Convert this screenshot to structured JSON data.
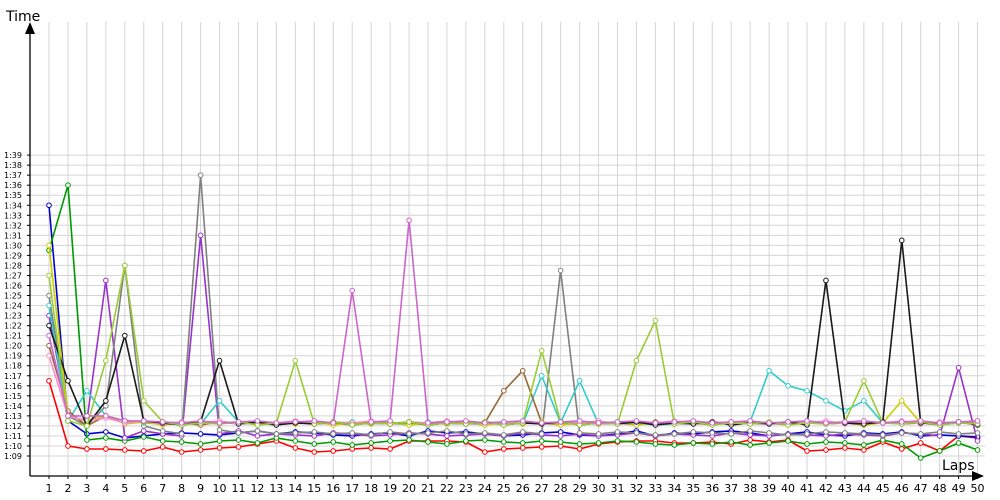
{
  "chart_data": {
    "type": "line",
    "title": "",
    "xlabel": "Laps",
    "ylabel": "Time",
    "x_ticks": [
      "1",
      "2",
      "3",
      "4",
      "5",
      "6",
      "7",
      "8",
      "9",
      "10",
      "11",
      "12",
      "13",
      "14",
      "15",
      "16",
      "17",
      "18",
      "19",
      "20",
      "21",
      "22",
      "23",
      "24",
      "25",
      "26",
      "27",
      "28",
      "29",
      "30",
      "31",
      "32",
      "33",
      "34",
      "35",
      "36",
      "37",
      "38",
      "39",
      "40",
      "41",
      "42",
      "43",
      "44",
      "45",
      "46",
      "47",
      "48",
      "49",
      "50"
    ],
    "y_ticks": [
      "1:09",
      "1:10",
      "1:11",
      "1:12",
      "1:13",
      "1:14",
      "1:15",
      "1:16",
      "1:17",
      "1:18",
      "1:19",
      "1:20",
      "1:21",
      "1:22",
      "1:23",
      "1:24",
      "1:25",
      "1:26",
      "1:27",
      "1:28",
      "1:29",
      "1:30",
      "1:31",
      "1:32",
      "1:33",
      "1:34",
      "1:35",
      "1:36",
      "1:37",
      "1:38",
      "1:39"
    ],
    "ylim": [
      68,
      100
    ],
    "xlim": [
      0.5,
      50.5
    ],
    "grid": true,
    "legend": "none",
    "series": [
      {
        "color": "#ff0000",
        "values": [
          76.5,
          70,
          69.7,
          69.7,
          69.6,
          69.5,
          69.9,
          69.4,
          69.6,
          69.8,
          69.9,
          70.2,
          70.5,
          69.8,
          69.4,
          69.5,
          69.7,
          69.8,
          69.7,
          70.5,
          70.5,
          70.5,
          70.4,
          69.4,
          69.7,
          69.8,
          69.9,
          70.0,
          69.7,
          70.2,
          70.4,
          70.5,
          70.5,
          70.3,
          70.3,
          70.4,
          70.2,
          70.6,
          70.4,
          70.6,
          69.5,
          69.6,
          69.8,
          69.6,
          70.4,
          69.7,
          70.3,
          69.5,
          71.0,
          70.8
        ]
      },
      {
        "color": "#0000cc",
        "values": [
          94,
          72.5,
          71.2,
          71.4,
          70.8,
          71.0,
          71.2,
          71.3,
          71.2,
          71.1,
          71.3,
          71.5,
          71.2,
          71.4,
          71.3,
          71.1,
          71.0,
          71.2,
          71.3,
          71.0,
          71.5,
          71.3,
          71.4,
          71.2,
          71.0,
          71.1,
          71.3,
          71.4,
          71.1,
          71.0,
          71.2,
          71.5,
          71.0,
          71.3,
          71.2,
          71.4,
          71.5,
          71.3,
          71.0,
          71.2,
          71.4,
          71.1,
          71.0,
          71.3,
          71.2,
          71.4,
          71.0,
          71.1,
          71.0,
          70.9
        ]
      },
      {
        "color": "#009900",
        "values": [
          89.5,
          96,
          70.6,
          70.8,
          70.5,
          70.9,
          70.5,
          70.4,
          70.2,
          70.5,
          70.6,
          70.3,
          70.8,
          70.5,
          70.2,
          70.4,
          70.1,
          70.3,
          70.5,
          70.6,
          70.4,
          70.2,
          70.5,
          70.6,
          70.4,
          70.3,
          70.5,
          70.4,
          70.2,
          70.3,
          70.5,
          70.4,
          70.2,
          70.1,
          70.3,
          70.2,
          70.4,
          70.1,
          70.3,
          70.5,
          70.2,
          70.4,
          70.3,
          70.1,
          70.6,
          70.2,
          68.8,
          69.5,
          70.3,
          69.6
        ]
      },
      {
        "color": "#9933cc",
        "values": [
          83,
          73,
          72.5,
          86.5,
          70.8,
          71.5,
          71.2,
          71.0,
          91.0,
          71.2,
          71.5,
          71.0,
          71.2,
          71.1,
          71.0,
          71.3,
          71.2,
          71.0,
          71.1,
          71.3,
          71.2,
          71.0,
          71.1,
          71.2,
          71.0,
          71.3,
          71.1,
          71.0,
          71.2,
          71.0,
          71.1,
          71.3,
          71.0,
          71.2,
          71.1,
          71.0,
          71.3,
          71.1,
          71.0,
          71.2,
          71.1,
          71.0,
          71.2,
          71.1,
          71.0,
          71.3,
          71.2,
          71.0,
          77.8,
          70.5
        ]
      },
      {
        "color": "#808080",
        "values": [
          85,
          73,
          72,
          74,
          88,
          72,
          71.5,
          71.2,
          97,
          71.6,
          71.3,
          71.5,
          71.2,
          71.3,
          71.4,
          71.2,
          71.3,
          71.1,
          71.4,
          71.2,
          71.3,
          71.5,
          71.2,
          71.3,
          71.1,
          71.4,
          71.2,
          87.5,
          71.3,
          71.2,
          71.4,
          71.3,
          71.1,
          71.2,
          71.4,
          71.3,
          71.2,
          71.5,
          71.3,
          71.1,
          71.2,
          71.4,
          71.3,
          71.2,
          71.1,
          71.3,
          71.2,
          71.4,
          71.2,
          71.3
        ]
      },
      {
        "color": "#33cccc",
        "values": [
          84,
          72.5,
          75.5,
          73,
          72.5,
          72.3,
          72.2,
          72.4,
          72.2,
          74.5,
          72.4,
          72.3,
          72.1,
          72.4,
          72.3,
          72.2,
          72.4,
          72.2,
          72.3,
          72.1,
          72.4,
          72.2,
          72.3,
          72.1,
          72.4,
          72.2,
          77,
          72.3,
          76.5,
          72.2,
          72.4,
          72.3,
          72.1,
          72.2,
          72.4,
          72.3,
          72.2,
          72.4,
          77.5,
          76,
          75.5,
          74.5,
          73.5,
          74.5,
          72.3,
          72.2,
          72.4,
          72.1,
          72.3,
          72.2
        ]
      },
      {
        "color": "#996633",
        "values": [
          80,
          73.5,
          72,
          73,
          72.5,
          72.4,
          72.2,
          72.3,
          72.1,
          72.4,
          72.2,
          72.3,
          72.1,
          72.4,
          72.2,
          72.3,
          72.1,
          72.4,
          72.2,
          72.3,
          72.1,
          72.4,
          72.2,
          72.3,
          75.5,
          77.5,
          72.3,
          72.1,
          72.4,
          72.2,
          72.3,
          72.1,
          72.4,
          72.2,
          72.3,
          72.1,
          72.4,
          72.2,
          72.3,
          72.1,
          72.4,
          72.2,
          72.3,
          72.1,
          72.4,
          72.2,
          72.3,
          72.1,
          72.4,
          72.2
        ]
      },
      {
        "color": "#cccc00",
        "values": [
          90,
          73,
          72.5,
          73,
          72.2,
          72.4,
          72.1,
          72.3,
          72.5,
          72.2,
          72.4,
          72.1,
          72.3,
          72.2,
          72.4,
          72.1,
          72.3,
          72.2,
          72.4,
          72.1,
          72.3,
          72.2,
          72.4,
          72.1,
          72.3,
          72.2,
          72.4,
          72.1,
          72.3,
          72.2,
          72.4,
          72.1,
          72.3,
          72.2,
          72.4,
          72.1,
          72.3,
          72.2,
          72.4,
          72.1,
          72.3,
          72.2,
          72.4,
          72.1,
          72.3,
          74.5,
          72.3,
          72.2,
          72.4,
          72.1
        ]
      },
      {
        "color": "#ff88cc",
        "values": [
          79,
          73,
          72.5,
          72.8,
          72.3,
          72.5,
          72.2,
          72.4,
          72.3,
          72.5,
          72.2,
          72.4,
          72.3,
          72.5,
          72.2,
          72.4,
          72.3,
          72.5,
          72.2,
          72.4,
          72.3,
          72.5,
          72.2,
          72.4,
          72.3,
          72.5,
          72.2,
          72.4,
          72.3,
          72.5,
          72.2,
          72.4,
          72.3,
          72.5,
          72.2,
          72.4,
          72.3,
          72.5,
          72.2,
          72.4,
          72.3,
          72.5,
          72.2,
          72.4,
          72.3,
          72.5,
          72.2,
          72.4,
          72.3,
          72.5
        ]
      },
      {
        "color": "#1a1a1a",
        "values": [
          82,
          76.5,
          72,
          74.5,
          81,
          72.5,
          72.3,
          72.1,
          72.4,
          78.5,
          72.2,
          72.4,
          72.1,
          72.3,
          72.2,
          72.4,
          72.1,
          72.3,
          72.2,
          72.4,
          72.1,
          72.3,
          72.2,
          72.4,
          72.1,
          72.3,
          72.2,
          72.4,
          72.1,
          72.3,
          72.2,
          72.4,
          72.1,
          72.3,
          72.2,
          72.4,
          72.1,
          72.3,
          72.2,
          72.4,
          72.1,
          86.5,
          72.3,
          72.2,
          72.4,
          90.5,
          72.3,
          72.2,
          72.4,
          72.1
        ]
      },
      {
        "color": "#99cc33",
        "values": [
          87,
          72.5,
          72,
          78.5,
          88,
          74.5,
          72.4,
          72.1,
          72.3,
          72.2,
          72.4,
          72.1,
          72.3,
          78.5,
          72.2,
          72.4,
          72.1,
          72.3,
          72.2,
          72.4,
          72.1,
          72.3,
          72.2,
          72.4,
          72.1,
          72.3,
          79.5,
          72.4,
          72.1,
          72.3,
          72.2,
          78.5,
          82.5,
          72.2,
          72.4,
          72.1,
          72.3,
          72.2,
          72.4,
          72.1,
          72.3,
          72.2,
          72.4,
          76.5,
          72.3,
          72.2,
          72.4,
          72.1,
          72.3,
          72.2
        ]
      },
      {
        "color": "#cc66cc",
        "values": [
          81,
          73,
          73,
          73,
          72.5,
          72.5,
          72.4,
          72.3,
          72.5,
          72.3,
          72.4,
          72.5,
          72.3,
          72.4,
          72.5,
          72.3,
          85.5,
          72.4,
          72.5,
          92.5,
          72.3,
          72.4,
          72.5,
          72.3,
          72.4,
          72.5,
          72.3,
          72.4,
          72.5,
          72.3,
          72.4,
          72.5,
          72.3,
          72.4,
          72.5,
          72.3,
          72.4,
          72.5,
          72.3,
          72.4,
          72.5,
          72.3,
          72.4,
          72.5,
          72.3,
          72.4,
          72.5,
          72.3,
          72.4,
          72.5
        ]
      }
    ]
  }
}
